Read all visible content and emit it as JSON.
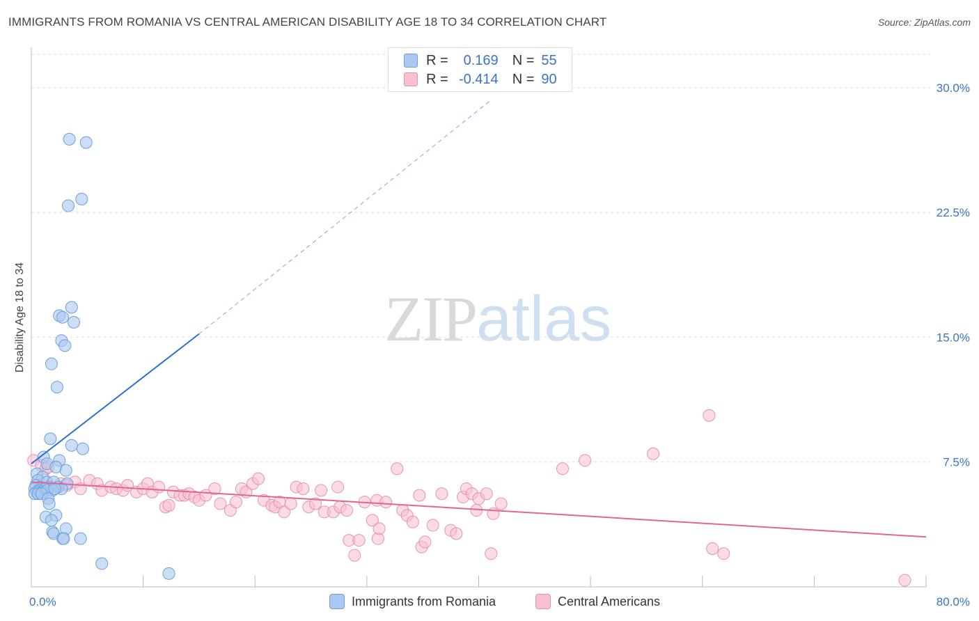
{
  "title": "IMMIGRANTS FROM ROMANIA VS CENTRAL AMERICAN DISABILITY AGE 18 TO 34 CORRELATION CHART",
  "source": "Source: ZipAtlas.com",
  "watermark": {
    "zip": "ZIP",
    "atlas": "atlas"
  },
  "legend": {
    "series": [
      {
        "r_label": "R =",
        "r_value": "0.169",
        "n_label": "N =",
        "n_value": "55"
      },
      {
        "r_label": "R =",
        "r_value": "-0.414",
        "n_label": "N =",
        "n_value": "90"
      }
    ]
  },
  "colors": {
    "romania_fill": "#aac8f0",
    "romania_stroke": "#6e9fdc",
    "romania_line": "#2a6fd4",
    "central_fill": "#f7c0d2",
    "central_stroke": "#e891b0",
    "central_line": "#e36592",
    "grid": "#dddddd",
    "axis_label": "#3a73c9"
  },
  "chart_data": {
    "type": "scatter",
    "title": "IMMIGRANTS FROM ROMANIA VS CENTRAL AMERICAN DISABILITY AGE 18 TO 34 CORRELATION CHART",
    "xlabel": "",
    "ylabel": "Disability Age 18 to 34",
    "xlim": [
      0,
      80
    ],
    "ylim": [
      0,
      32
    ],
    "x_tick_labels": [
      "0.0%",
      "80.0%"
    ],
    "y_ticks": [
      7.5,
      15.0,
      22.5,
      30.0
    ],
    "y_tick_labels": [
      "7.5%",
      "15.0%",
      "22.5%",
      "30.0%"
    ],
    "series": [
      {
        "name": "Immigrants from Romania",
        "r": 0.169,
        "n": 55,
        "trend": {
          "x0": 0,
          "y0": 7.4,
          "x1": 15,
          "y1": 15.2,
          "dash_to_x": 41,
          "dash_to_y": 29.2
        },
        "points": [
          [
            3.4,
            26.9
          ],
          [
            4.9,
            26.7
          ],
          [
            3.3,
            22.9
          ],
          [
            4.5,
            23.3
          ],
          [
            3.6,
            16.8
          ],
          [
            2.5,
            16.3
          ],
          [
            2.8,
            16.2
          ],
          [
            3.8,
            15.9
          ],
          [
            2.7,
            14.8
          ],
          [
            3.0,
            14.5
          ],
          [
            1.8,
            13.4
          ],
          [
            2.3,
            12.0
          ],
          [
            1.7,
            8.9
          ],
          [
            3.6,
            8.5
          ],
          [
            4.6,
            8.3
          ],
          [
            1.1,
            7.8
          ],
          [
            2.5,
            7.6
          ],
          [
            1.4,
            7.4
          ],
          [
            2.2,
            7.2
          ],
          [
            3.1,
            7.0
          ],
          [
            0.5,
            6.8
          ],
          [
            1.0,
            6.6
          ],
          [
            0.6,
            6.4
          ],
          [
            1.4,
            6.3
          ],
          [
            2.0,
            6.3
          ],
          [
            3.2,
            6.2
          ],
          [
            0.4,
            6.1
          ],
          [
            0.8,
            6.0
          ],
          [
            1.6,
            6.0
          ],
          [
            2.4,
            6.0
          ],
          [
            0.3,
            5.9
          ],
          [
            1.2,
            5.9
          ],
          [
            0.7,
            5.8
          ],
          [
            2.7,
            5.9
          ],
          [
            1.9,
            5.8
          ],
          [
            0.5,
            5.7
          ],
          [
            1.0,
            5.7
          ],
          [
            0.3,
            5.6
          ],
          [
            0.6,
            5.6
          ],
          [
            1.4,
            5.8
          ],
          [
            0.9,
            5.6
          ],
          [
            2.1,
            5.9
          ],
          [
            1.5,
            5.3
          ],
          [
            1.6,
            5.0
          ],
          [
            1.3,
            4.2
          ],
          [
            2.2,
            4.3
          ],
          [
            1.8,
            4.0
          ],
          [
            3.1,
            3.5
          ],
          [
            1.9,
            3.3
          ],
          [
            2.0,
            3.2
          ],
          [
            2.8,
            2.9
          ],
          [
            2.9,
            2.9
          ],
          [
            4.4,
            2.9
          ],
          [
            6.3,
            1.4
          ],
          [
            12.3,
            0.8
          ]
        ]
      },
      {
        "name": "Central Americans",
        "r": -0.414,
        "n": 90,
        "trend": {
          "x0": 0,
          "y0": 6.3,
          "x1": 80,
          "y1": 3.0
        },
        "points": [
          [
            0.2,
            7.6
          ],
          [
            0.9,
            7.3
          ],
          [
            1.3,
            7.1
          ],
          [
            1.5,
            7.2
          ],
          [
            2.4,
            6.0
          ],
          [
            2.6,
            6.2
          ],
          [
            3.2,
            6.1
          ],
          [
            3.9,
            6.3
          ],
          [
            4.4,
            5.9
          ],
          [
            5.2,
            6.4
          ],
          [
            5.9,
            6.2
          ],
          [
            6.3,
            5.8
          ],
          [
            7.1,
            6.0
          ],
          [
            7.6,
            5.9
          ],
          [
            8.2,
            5.8
          ],
          [
            8.6,
            6.1
          ],
          [
            9.4,
            5.7
          ],
          [
            10.0,
            5.9
          ],
          [
            10.4,
            6.2
          ],
          [
            10.8,
            5.7
          ],
          [
            11.4,
            6.0
          ],
          [
            12.0,
            4.8
          ],
          [
            12.3,
            4.9
          ],
          [
            12.7,
            5.7
          ],
          [
            13.3,
            5.5
          ],
          [
            13.7,
            5.5
          ],
          [
            14.1,
            5.6
          ],
          [
            14.6,
            5.4
          ],
          [
            15.0,
            5.2
          ],
          [
            15.6,
            5.5
          ],
          [
            16.4,
            5.9
          ],
          [
            16.9,
            5.0
          ],
          [
            17.8,
            4.6
          ],
          [
            18.3,
            5.1
          ],
          [
            18.8,
            5.9
          ],
          [
            19.2,
            5.7
          ],
          [
            19.8,
            6.2
          ],
          [
            20.3,
            6.5
          ],
          [
            20.8,
            5.2
          ],
          [
            21.5,
            4.9
          ],
          [
            21.8,
            4.8
          ],
          [
            22.2,
            5.1
          ],
          [
            22.6,
            4.5
          ],
          [
            23.2,
            5.0
          ],
          [
            23.7,
            6.0
          ],
          [
            24.3,
            5.9
          ],
          [
            24.8,
            4.8
          ],
          [
            25.4,
            5.0
          ],
          [
            25.9,
            5.8
          ],
          [
            26.2,
            4.5
          ],
          [
            27.0,
            4.5
          ],
          [
            27.4,
            6.0
          ],
          [
            27.6,
            4.8
          ],
          [
            28.2,
            4.6
          ],
          [
            28.4,
            2.8
          ],
          [
            28.9,
            1.9
          ],
          [
            29.3,
            2.8
          ],
          [
            29.8,
            5.1
          ],
          [
            30.5,
            4.0
          ],
          [
            30.9,
            5.2
          ],
          [
            31.0,
            2.9
          ],
          [
            31.1,
            3.5
          ],
          [
            31.7,
            5.1
          ],
          [
            32.7,
            7.1
          ],
          [
            33.2,
            4.6
          ],
          [
            33.6,
            4.3
          ],
          [
            34.1,
            3.9
          ],
          [
            34.7,
            5.5
          ],
          [
            34.9,
            2.4
          ],
          [
            35.2,
            2.7
          ],
          [
            35.9,
            3.7
          ],
          [
            36.7,
            5.6
          ],
          [
            37.5,
            3.4
          ],
          [
            38.0,
            3.2
          ],
          [
            38.6,
            5.4
          ],
          [
            38.9,
            5.9
          ],
          [
            39.4,
            5.6
          ],
          [
            39.8,
            4.6
          ],
          [
            40.0,
            5.3
          ],
          [
            40.7,
            5.6
          ],
          [
            41.1,
            2.0
          ],
          [
            41.3,
            4.4
          ],
          [
            47.5,
            7.1
          ],
          [
            49.5,
            7.6
          ],
          [
            55.6,
            8.0
          ],
          [
            60.6,
            10.3
          ],
          [
            60.9,
            2.3
          ],
          [
            61.9,
            2.0
          ],
          [
            78.1,
            0.4
          ],
          [
            42.0,
            5.0
          ]
        ]
      }
    ]
  },
  "bottom_legend": [
    "Immigrants from Romania",
    "Central Americans"
  ]
}
